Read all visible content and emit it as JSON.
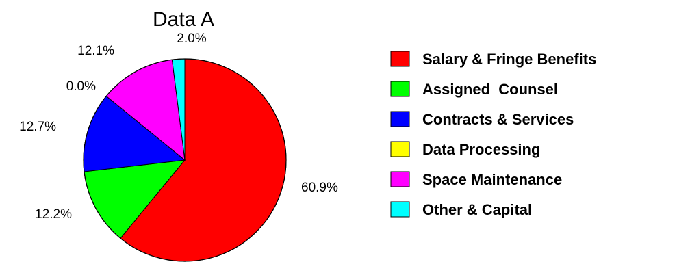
{
  "chart_data": {
    "type": "pie",
    "title": "Data A",
    "categories": [
      "Salary & Fringe Benefits",
      "Assigned  Counsel",
      "Contracts & Services",
      "Data Processing",
      "Space Maintenance",
      "Other & Capital"
    ],
    "values": [
      60.9,
      12.2,
      12.7,
      0.0,
      12.1,
      2.0
    ],
    "value_labels": [
      "60.9%",
      "12.2%",
      "12.7%",
      "0.0%",
      "12.1%",
      "2.0%"
    ],
    "colors": [
      "#ff0000",
      "#00ff00",
      "#0000ff",
      "#ffff00",
      "#ff00ff",
      "#00ffff"
    ],
    "legend_position": "right",
    "start": "top",
    "direction": "clockwise"
  }
}
